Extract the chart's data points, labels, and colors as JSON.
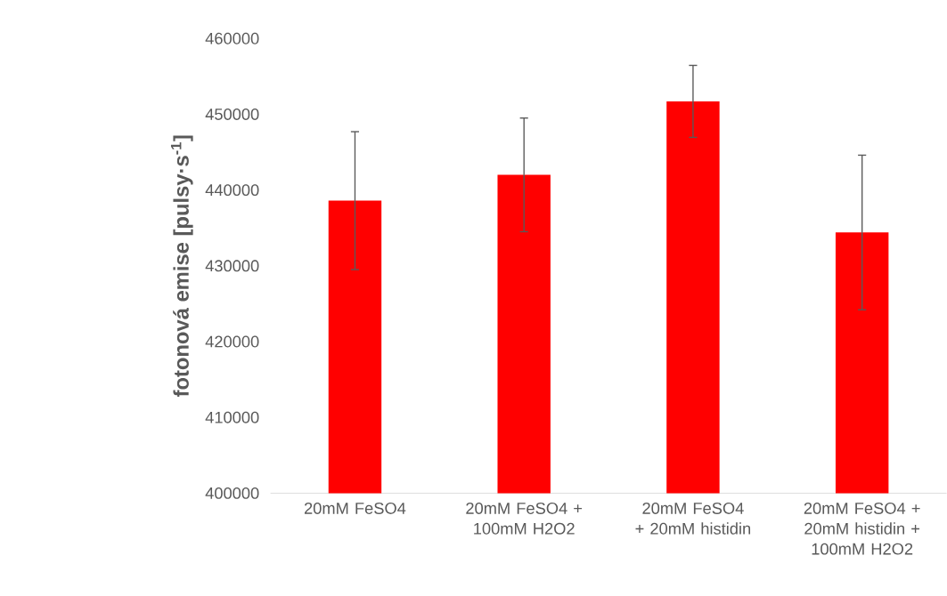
{
  "chart_data": {
    "type": "bar",
    "ylabel": "fotonová emise [pulsy·s$^{-1}$]",
    "categories": [
      "20mM FeSO4",
      "20mM FeSO4 + 100mM H2O2",
      "20mM FeSO4 + 20mM histidin",
      "20mM FeSO4 + 20mM histidin + 100mM H2O2"
    ],
    "values": [
      438600,
      442000,
      451700,
      434400
    ],
    "errors": [
      9100,
      7500,
      4750,
      10200
    ],
    "color": "#ff0000",
    "ylim": [
      400000,
      460000
    ],
    "yticks": [
      400000,
      410000,
      420000,
      430000,
      440000,
      450000,
      460000
    ],
    "grid": false
  }
}
